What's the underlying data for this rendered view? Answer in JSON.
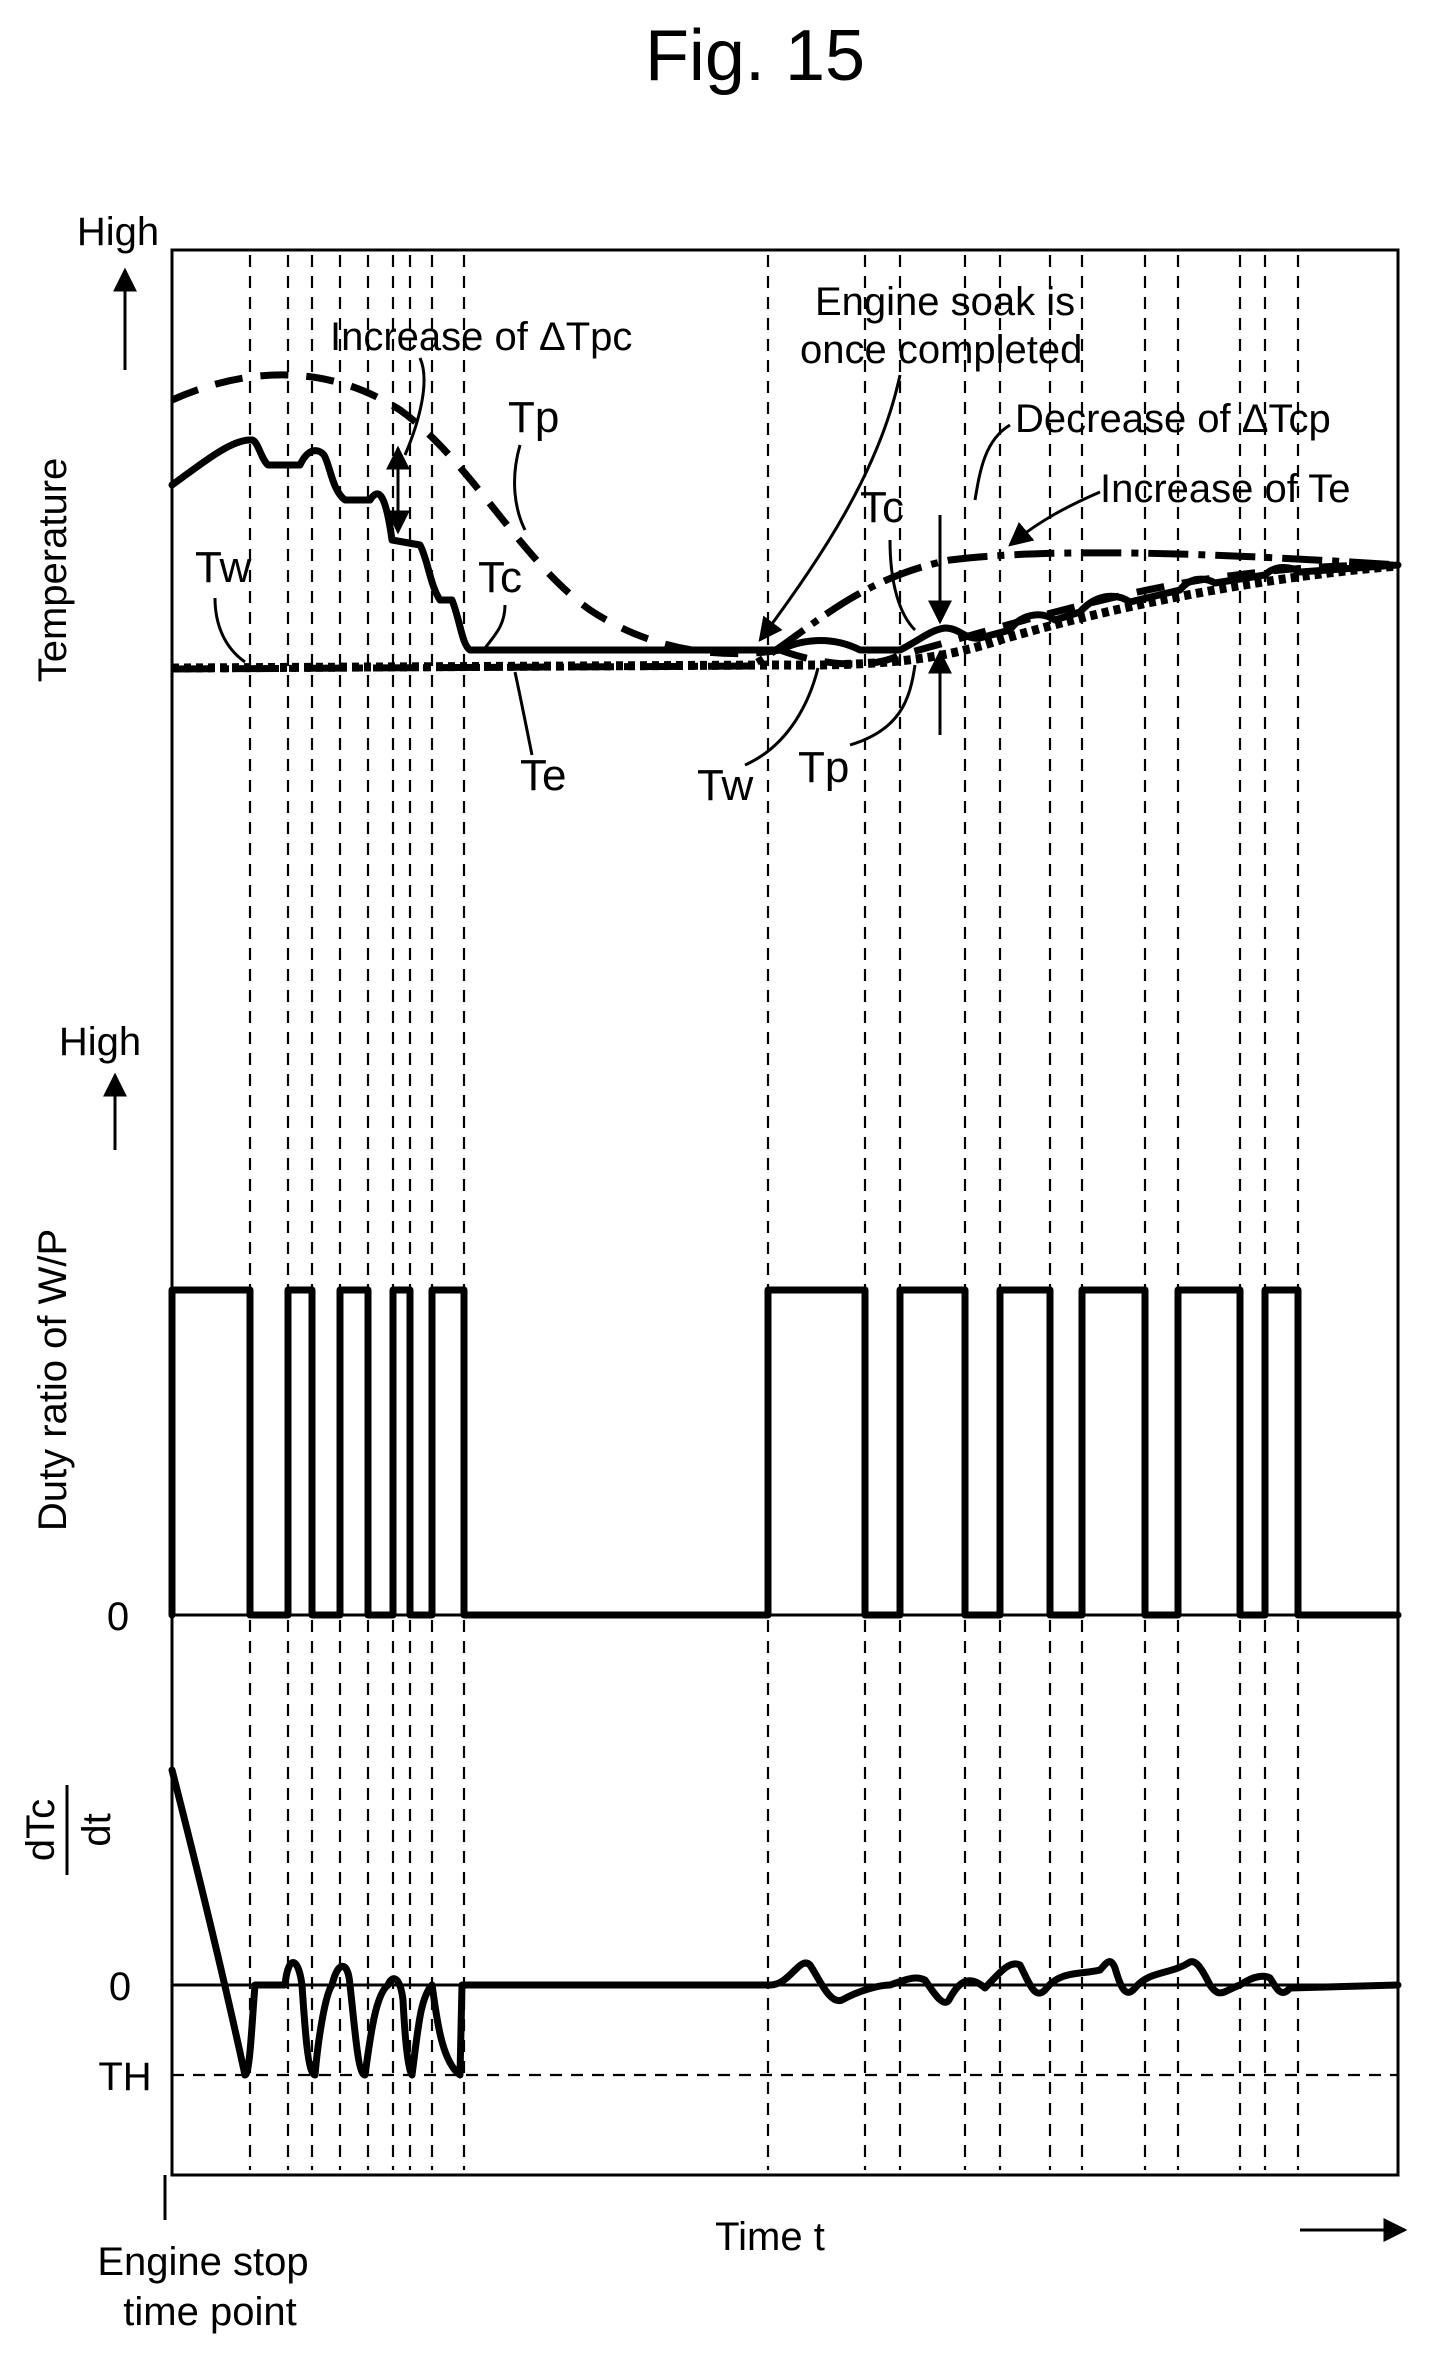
{
  "figure": {
    "title": "Fig. 15",
    "temperature_panel": {
      "axis_label": "Temperature",
      "high_label": "High",
      "annotations": {
        "increase_dtpc": "Increase of ΔTpc",
        "engine_soak_line1": "Engine soak is",
        "engine_soak_line2": "once completed",
        "decrease_dtcp": "Decrease of ΔTcp",
        "increase_te": "Increase of Te"
      },
      "curve_labels": {
        "tp_top": "Tp",
        "tc_left": "Tc",
        "tw_left": "Tw",
        "te": "Te",
        "tc_right": "Tc",
        "tw_right": "Tw",
        "tp_right": "Tp"
      }
    },
    "duty_panel": {
      "axis_label": "Duty ratio of W/P",
      "high_label": "High",
      "zero_label": "0"
    },
    "dtc_panel": {
      "numerator": "dTc",
      "denominator": "dt",
      "zero_label": "0",
      "threshold_label": "TH"
    },
    "x_axis": {
      "label": "Time t",
      "origin_line1": "Engine stop",
      "origin_line2": "time point"
    }
  }
}
